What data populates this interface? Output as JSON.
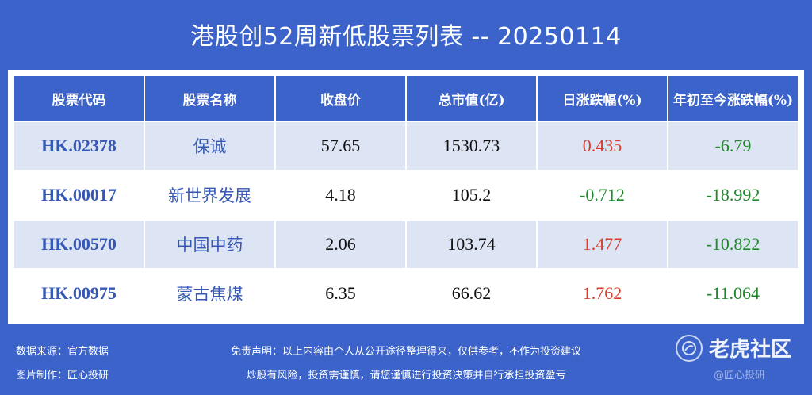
{
  "title": "港股创52周新低股票列表 -- 20250114",
  "table": {
    "headers": [
      "股票代码",
      "股票名称",
      "收盘价",
      "总市值(亿)",
      "日涨跌幅(%)",
      "年初至今涨跌幅(%)"
    ],
    "rows": [
      {
        "code": "HK.02378",
        "name": "保诚",
        "close": "57.65",
        "mcap": "1530.73",
        "day": "0.435",
        "ytd": "-6.79"
      },
      {
        "code": "HK.00017",
        "name": "新世界发展",
        "close": "4.18",
        "mcap": "105.2",
        "day": "-0.712",
        "ytd": "-18.992"
      },
      {
        "code": "HK.00570",
        "name": "中国中药",
        "close": "2.06",
        "mcap": "103.74",
        "day": "1.477",
        "ytd": "-10.822"
      },
      {
        "code": "HK.00975",
        "name": "蒙古焦煤",
        "close": "6.35",
        "mcap": "66.62",
        "day": "1.762",
        "ytd": "-11.064"
      }
    ]
  },
  "footer": {
    "source": "数据来源：官方数据",
    "maker": "图片制作：匠心投研",
    "disclaimer_1": "免责声明：以上内容由个人从公开途径整理得来，仅供参考，不作为投资建议",
    "disclaimer_2": "炒股有风险，投资需谨慎，请您谨慎进行投资决策并自行承担投资盈亏"
  },
  "watermark": {
    "text": "老虎社区",
    "sub": "@匠心投研",
    "icon": "tiger-community-logo-icon"
  },
  "colors": {
    "background": "#3b63c9",
    "code_text": "#3557b5",
    "positive": "#d83a2c",
    "negative": "#1f8a2a",
    "row_shade": "#dde4f3"
  }
}
